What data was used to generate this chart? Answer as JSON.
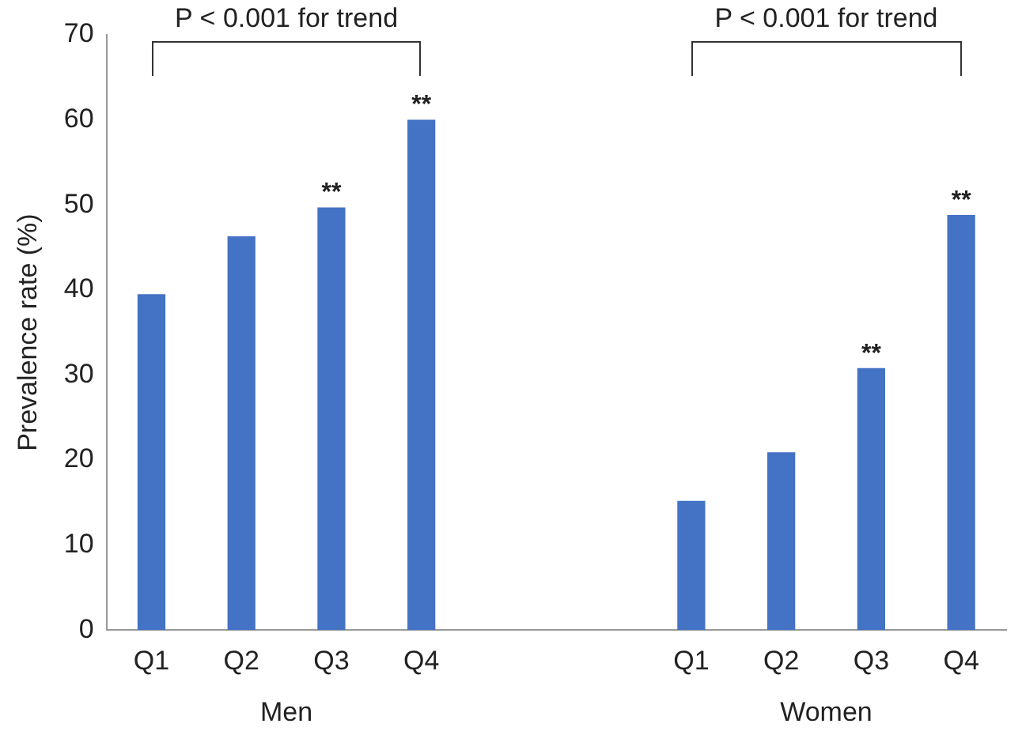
{
  "chart_data": {
    "type": "bar",
    "ylabel": "Prevalence rate (%)",
    "categories": [
      "Q1",
      "Q2",
      "Q3",
      "Q4",
      null,
      null,
      "Q1",
      "Q2",
      "Q3",
      "Q4"
    ],
    "values": [
      39.5,
      46.3,
      49.7,
      60.0,
      null,
      null,
      15.2,
      20.9,
      30.8,
      48.8
    ],
    "value_labels": [
      null,
      null,
      "**",
      "**",
      null,
      null,
      null,
      null,
      "**",
      "**"
    ],
    "color": "#4472c4",
    "ylim": [
      0,
      70
    ],
    "yticks": [
      0,
      10,
      20,
      30,
      40,
      50,
      60,
      70
    ],
    "grid": false,
    "legend": false,
    "annotations": [
      "P < 0.001 for trend",
      "P < 0.001 for trend",
      "Men",
      "Women"
    ]
  }
}
